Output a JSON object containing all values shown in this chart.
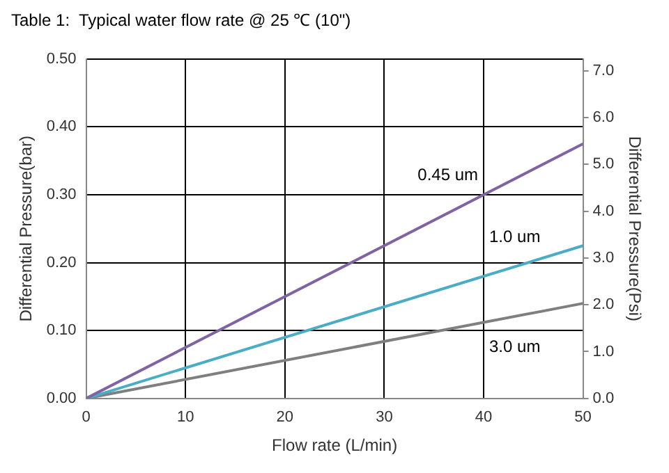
{
  "chart_data": {
    "type": "line",
    "title": "Table 1:  Typical water flow rate @ 25 ℃ (10\")",
    "xlabel": "Flow rate (L/min)",
    "ylabel": "Differential Pressure(bar)",
    "y2label": "Differential Pressure(Psi)",
    "x": [
      0,
      50
    ],
    "series": [
      {
        "name": "0.45 um",
        "color": "#8064a2",
        "values": [
          0,
          0.375
        ]
      },
      {
        "name": "1.0 um",
        "color": "#4bacc6",
        "values": [
          0,
          0.225
        ]
      },
      {
        "name": "3.0 um",
        "color": "#7f7f7f",
        "values": [
          0,
          0.14
        ]
      }
    ],
    "xlim": [
      0,
      50
    ],
    "xticks": [
      0,
      10,
      20,
      30,
      40,
      50
    ],
    "ylim": [
      0,
      0.5
    ],
    "yticks": [
      {
        "value": 0,
        "label": "0.00"
      },
      {
        "value": 0.1,
        "label": "0.10"
      },
      {
        "value": 0.2,
        "label": "0.20"
      },
      {
        "value": 0.3,
        "label": "0.30"
      },
      {
        "value": 0.4,
        "label": "0.40"
      },
      {
        "value": 0.5,
        "label": "0.50"
      }
    ],
    "y2lim": [
      0,
      7.25
    ],
    "y2ticks": [
      {
        "value": 0,
        "label": "0.0"
      },
      {
        "value": 1,
        "label": "1.0"
      },
      {
        "value": 2,
        "label": "2.0"
      },
      {
        "value": 3,
        "label": "3.0"
      },
      {
        "value": 4,
        "label": "4.0"
      },
      {
        "value": 5,
        "label": "5.0"
      },
      {
        "value": 6,
        "label": "6.0"
      },
      {
        "value": 7,
        "label": "7.0"
      }
    ],
    "grid": true,
    "legend": false,
    "marker": "none",
    "line_style": "solid"
  }
}
